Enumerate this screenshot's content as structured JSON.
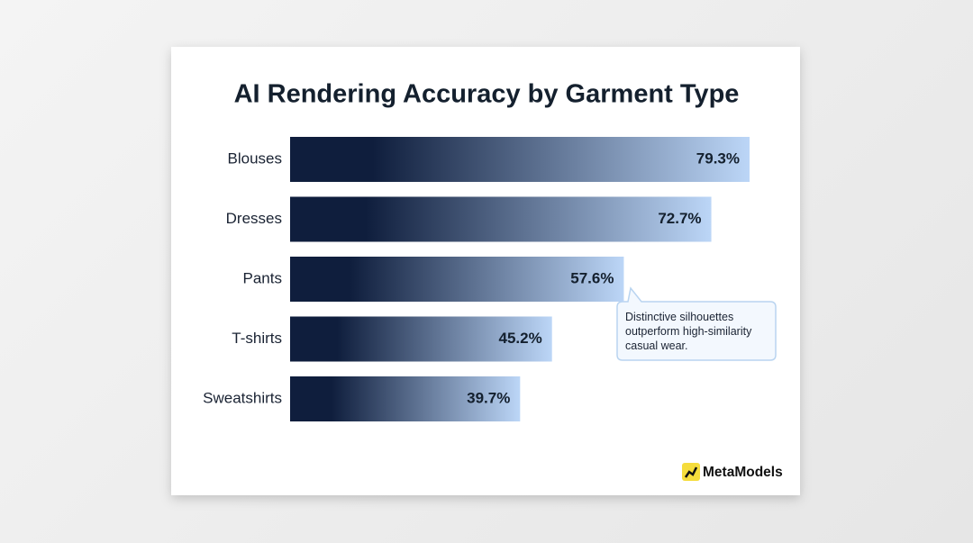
{
  "chart_data": {
    "type": "bar",
    "orientation": "horizontal",
    "title": "AI Rendering Accuracy by Garment Type",
    "categories": [
      "Blouses",
      "Dresses",
      "Pants",
      "T-shirts",
      "Sweatshirts"
    ],
    "values": [
      79.3,
      72.7,
      57.6,
      45.2,
      39.7
    ],
    "value_labels": [
      "79.3%",
      "72.7%",
      "57.6%",
      "45.2%",
      "39.7%"
    ],
    "color": [
      "#0f1e3d",
      "#bcd6f7"
    ],
    "annotation": "Distinctive silhouettes outperform high-similarity casual wear."
  },
  "brand": "MetaModels"
}
